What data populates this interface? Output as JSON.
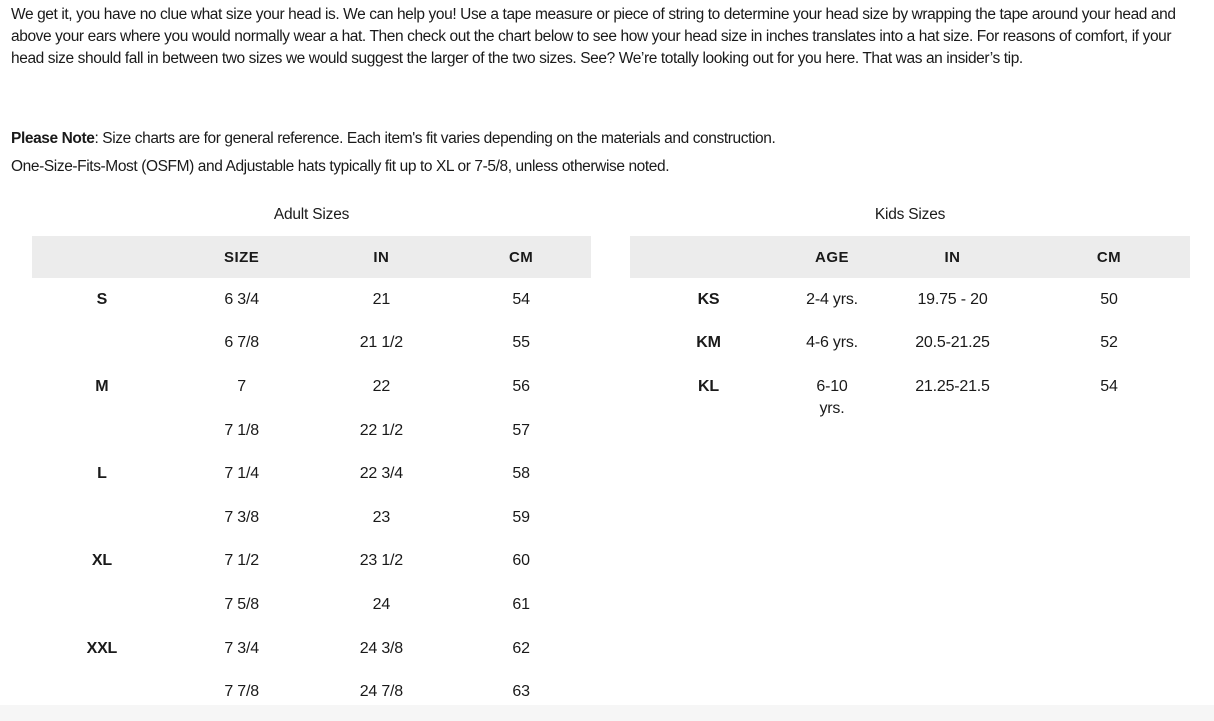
{
  "intro": {
    "text": "We get it, you have no clue what size your head is. We can help you! Use a tape measure or piece of string to determine your head size by wrapping the tape around your head and above your ears where you would normally wear a hat. Then check out the chart below to see how your head size in inches translates into a hat size. For reasons of comfort, if your head size should fall in between two sizes we would suggest the larger of the two sizes. See? We’re totally looking out for you here. That was an insider’s tip."
  },
  "note": {
    "label": "Please Note",
    "text": ": Size charts are for general reference. Each item's fit varies depending on the materials and construction.",
    "line2": "One-Size-Fits-Most (OSFM) and Adjustable hats typically fit up to XL or 7-5/8, unless otherwise noted."
  },
  "adult_table": {
    "title": "Adult Sizes",
    "headers": [
      "",
      "SIZE",
      "IN",
      "CM"
    ],
    "rows": [
      [
        "S",
        "6 3/4",
        "21",
        "54"
      ],
      [
        "",
        "6 7/8",
        "21 1/2",
        "55"
      ],
      [
        "M",
        "7",
        "22",
        "56"
      ],
      [
        "",
        "7 1/8",
        "22 1/2",
        "57"
      ],
      [
        "L",
        "7 1/4",
        "22 3/4",
        "58"
      ],
      [
        "",
        "7 3/8",
        "23",
        "59"
      ],
      [
        "XL",
        "7 1/2",
        "23 1/2",
        "60"
      ],
      [
        "",
        "7 5/8",
        "24",
        "61"
      ],
      [
        "XXL",
        "7 3/4",
        "24 3/8",
        "62"
      ],
      [
        "",
        "7 7/8",
        "24 7/8",
        "63"
      ]
    ]
  },
  "kids_table": {
    "title": "Kids Sizes",
    "headers": [
      "",
      "AGE",
      "IN",
      "CM"
    ],
    "rows": [
      [
        "KS",
        "2-4 yrs.",
        "19.75 - 20",
        "50"
      ],
      [
        "KM",
        "4-6 yrs.",
        "20.5-21.25",
        "52"
      ],
      [
        "KL",
        "6-10 yrs.",
        "21.25-21.5",
        "54"
      ]
    ]
  },
  "colors": {
    "text": "#1a1a1a",
    "table_header_bg": "#ececec",
    "footer_strip_bg": "#f6f6f6",
    "background": "#ffffff"
  }
}
